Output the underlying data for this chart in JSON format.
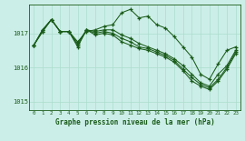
{
  "background_color": "#cceee8",
  "grid_color": "#aaddcc",
  "line_color": "#1a5c1a",
  "title": "Graphe pression niveau de la mer (hPa)",
  "xlim": [
    -0.5,
    23.5
  ],
  "ylim": [
    1014.75,
    1017.85
  ],
  "yticks": [
    1015,
    1016,
    1017
  ],
  "xticks": [
    0,
    1,
    2,
    3,
    4,
    5,
    6,
    7,
    8,
    9,
    10,
    11,
    12,
    13,
    14,
    15,
    16,
    17,
    18,
    19,
    20,
    21,
    22,
    23
  ],
  "line1_x": [
    0,
    1,
    2,
    3,
    4,
    5,
    6,
    7,
    8,
    9,
    10,
    11,
    12,
    13,
    14,
    15,
    16,
    17,
    18,
    19,
    20,
    21,
    22,
    23
  ],
  "line1_y": [
    1016.65,
    1017.1,
    1017.4,
    1017.05,
    1017.05,
    1016.75,
    1017.05,
    1017.1,
    1017.2,
    1017.25,
    1017.6,
    1017.7,
    1017.45,
    1017.5,
    1017.25,
    1017.15,
    1016.9,
    1016.6,
    1016.3,
    1015.8,
    1015.65,
    1016.1,
    1016.5,
    1016.6
  ],
  "line2_x": [
    0,
    1,
    2,
    3,
    4,
    5,
    6,
    7,
    8,
    9,
    10,
    11,
    12,
    13,
    14,
    15,
    16,
    17,
    18,
    19,
    20,
    21,
    22,
    23
  ],
  "line2_y": [
    1016.65,
    1017.1,
    1017.4,
    1017.05,
    1017.05,
    1016.7,
    1017.1,
    1017.05,
    1017.1,
    1017.1,
    1016.95,
    1016.85,
    1016.7,
    1016.6,
    1016.5,
    1016.4,
    1016.25,
    1016.05,
    1015.8,
    1015.55,
    1015.45,
    1015.8,
    1016.05,
    1016.5
  ],
  "line3_x": [
    0,
    1,
    2,
    3,
    4,
    5,
    6,
    7,
    8,
    9,
    10,
    11,
    12,
    13,
    14,
    15,
    16,
    17,
    18,
    19,
    20,
    21,
    22,
    23
  ],
  "line3_y": [
    1016.65,
    1017.05,
    1017.4,
    1017.05,
    1017.05,
    1016.65,
    1017.1,
    1017.0,
    1017.05,
    1017.0,
    1016.85,
    1016.75,
    1016.6,
    1016.55,
    1016.45,
    1016.35,
    1016.2,
    1015.95,
    1015.7,
    1015.5,
    1015.4,
    1015.65,
    1016.0,
    1016.45
  ],
  "line4_x": [
    0,
    1,
    2,
    3,
    4,
    5,
    6,
    7,
    8,
    9,
    10,
    11,
    12,
    13,
    14,
    15,
    16,
    17,
    18,
    19,
    20,
    21,
    22,
    23
  ],
  "line4_y": [
    1016.65,
    1017.05,
    1017.4,
    1017.05,
    1017.05,
    1016.6,
    1017.1,
    1016.95,
    1017.0,
    1016.95,
    1016.75,
    1016.65,
    1016.55,
    1016.5,
    1016.4,
    1016.3,
    1016.15,
    1015.9,
    1015.6,
    1015.45,
    1015.35,
    1015.6,
    1015.95,
    1016.4
  ]
}
